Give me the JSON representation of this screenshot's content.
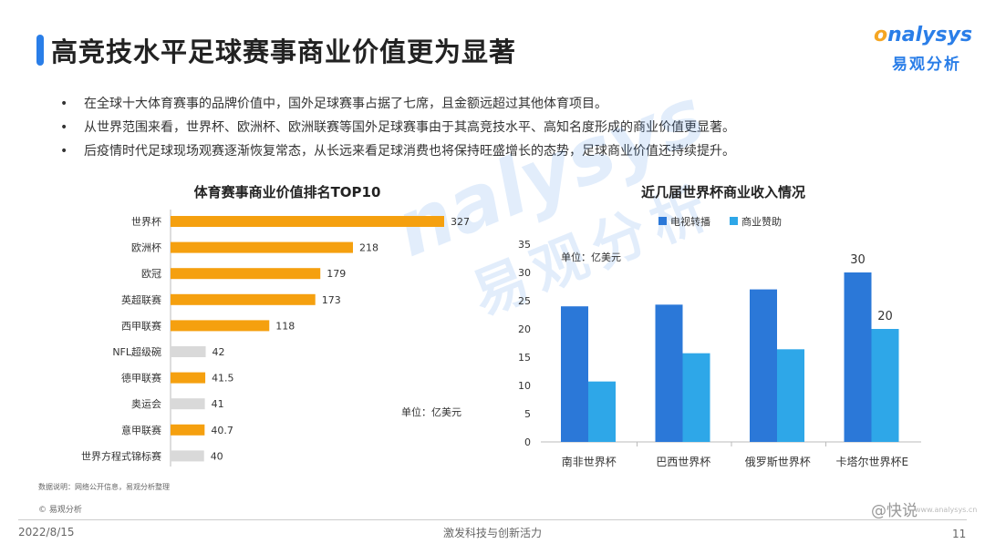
{
  "header": {
    "title": "高竞技水平足球赛事商业价值更为显著"
  },
  "logo": {
    "en_prefix": "o",
    "en_rest": "nalysys",
    "cn": "易观分析"
  },
  "bullets": [
    "在全球十大体育赛事的品牌价值中，国外足球赛事占据了七席，且金额远超过其他体育项目。",
    "从世界范围来看，世界杯、欧洲杯、欧洲联赛等国外足球赛事由于其高竞技水平、高知名度形成的商业价值更显著。",
    "后疫情时代足球现场观赛逐渐恢复常态，从长远来看足球消费也将保持旺盛增长的态势，足球商业价值还持续提升。"
  ],
  "watermark": {
    "en": "nalysys",
    "cn": "易观分析"
  },
  "colors": {
    "accent": "#2a7ee8",
    "orange": "#f5a00f",
    "gray": "#d9d9d9",
    "tv": "#2b78d8",
    "sponsor": "#2ea7e8"
  },
  "chart_data": [
    {
      "type": "bar",
      "orientation": "horizontal",
      "title": "体育赛事商业价值排名TOP10",
      "unit_label": "单位：亿美元",
      "categories": [
        "世界杯",
        "欧洲杯",
        "欧冠",
        "英超联赛",
        "西甲联赛",
        "NFL超级碗",
        "德甲联赛",
        "奥运会",
        "意甲联赛",
        "世界方程式锦标赛"
      ],
      "values": [
        327,
        218,
        179,
        173,
        118,
        42,
        41.5,
        41,
        40.7,
        40
      ],
      "value_labels": [
        "327",
        "218",
        "179",
        "173",
        "118",
        "42",
        "41.5",
        "41",
        "40.7",
        "40"
      ],
      "bar_colors": [
        "orange",
        "orange",
        "orange",
        "orange",
        "orange",
        "gray",
        "orange",
        "gray",
        "orange",
        "gray"
      ],
      "xlim": [
        0,
        327
      ]
    },
    {
      "type": "bar",
      "title": "近几届世界杯商业收入情况",
      "unit_label": "单位：亿美元",
      "categories": [
        "南非世界杯",
        "巴西世界杯",
        "俄罗斯世界杯",
        "卡塔尔世界杯E"
      ],
      "series": [
        {
          "name": "电视转播",
          "values": [
            24,
            24.3,
            27,
            30
          ]
        },
        {
          "name": "商业赞助",
          "values": [
            10.7,
            15.7,
            16.4,
            20
          ]
        }
      ],
      "data_labels": {
        "series0_last": "30",
        "series1_last": "20"
      },
      "ylim": [
        0,
        35
      ],
      "yticks": [
        "0",
        "5",
        "10",
        "15",
        "20",
        "25",
        "30",
        "35"
      ],
      "grid": false,
      "legend": "top"
    }
  ],
  "footer": {
    "source": "数据说明：网络公开信息，易观分析整理",
    "copyright": "© 易观分析",
    "date": "2022/8/15",
    "slogan": "激发科技与创新活力",
    "page": "11",
    "wechat": "@快说",
    "wechat_sub": "www.analysys.cn"
  }
}
